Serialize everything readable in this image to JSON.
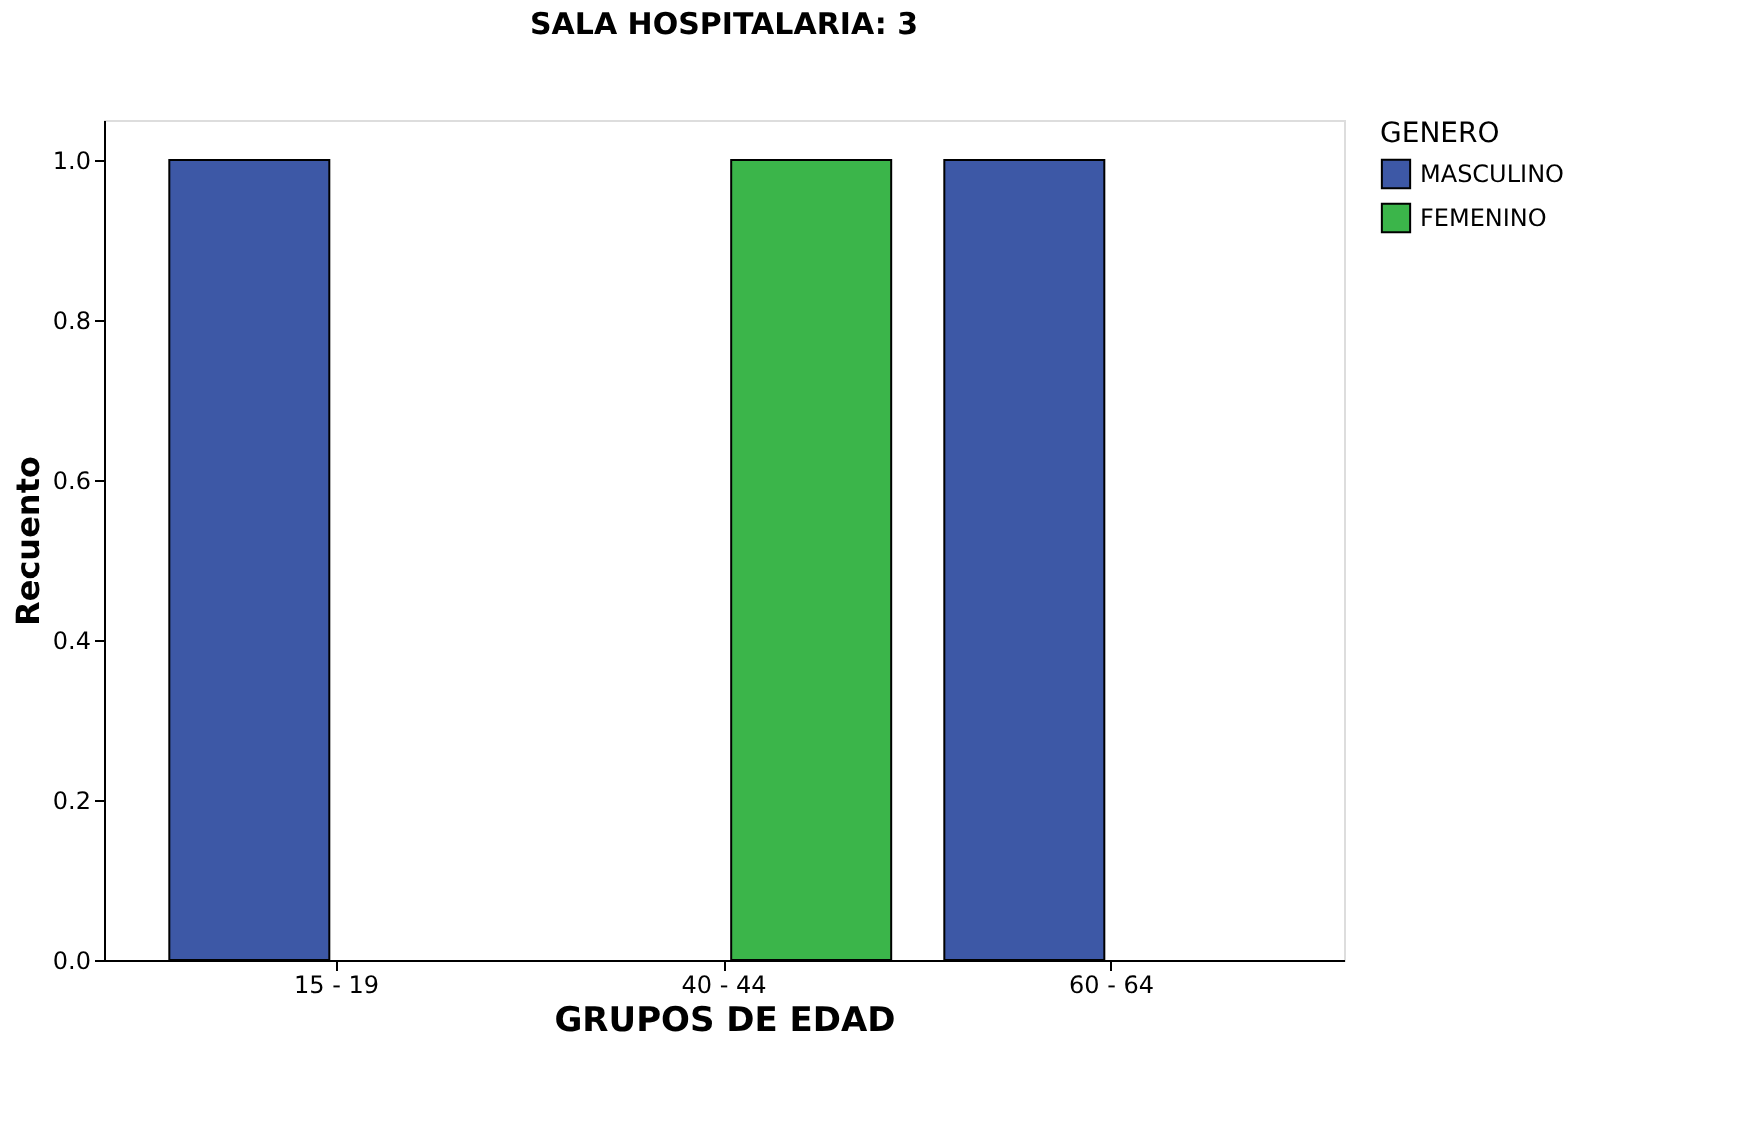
{
  "chart_data": {
    "type": "bar",
    "title": "SALA HOSPITALARIA: 3",
    "xlabel": "GRUPOS DE EDAD",
    "ylabel": "Recuento",
    "legend_title": "GENERO",
    "categories": [
      "15 - 19",
      "40 - 44",
      "60 - 64"
    ],
    "series": [
      {
        "name": "MASCULINO",
        "color": "#3d58a6",
        "values": [
          1,
          null,
          1
        ]
      },
      {
        "name": "FEMENINO",
        "color": "#3bb54a",
        "values": [
          null,
          1,
          null
        ]
      }
    ],
    "ylim": [
      0,
      1.05
    ],
    "yticks": [
      {
        "value": 0,
        "label": "0.0"
      },
      {
        "value": 0.2,
        "label": "0.2"
      },
      {
        "value": 0.4,
        "label": "0.4"
      },
      {
        "value": 0.6,
        "label": "0.6"
      },
      {
        "value": 0.8,
        "label": "0.8"
      },
      {
        "value": 1,
        "label": "1.0"
      }
    ],
    "grid": false,
    "legend": "top right"
  }
}
